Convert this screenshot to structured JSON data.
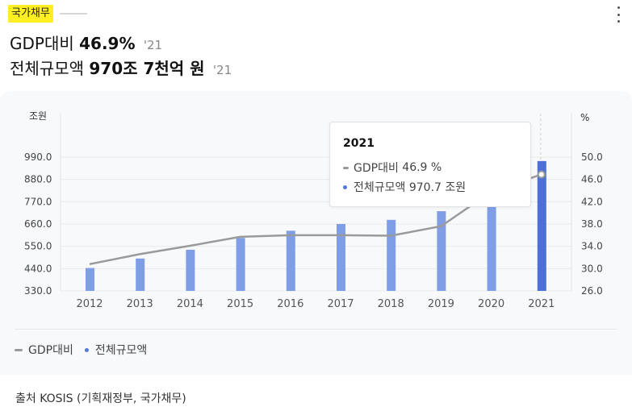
{
  "header": {
    "tag": "국가채무",
    "line1": {
      "label": "GDP대비",
      "value": "46.9%",
      "year": "'21"
    },
    "line2": {
      "label": "전체규모액",
      "value": "970조 7천억 원",
      "year": "'21"
    }
  },
  "tooltip": {
    "title": "2021",
    "rows": [
      {
        "label": "GDP대비",
        "value": "46.9 %"
      },
      {
        "label": "전체규모액",
        "value": "970.7 조원"
      }
    ]
  },
  "legend": {
    "items": [
      "GDP대비",
      "전체규모액"
    ]
  },
  "source": "출처 KOSIS (기획재정부, 국가채무)",
  "colors": {
    "bar": "#7f9ee6",
    "bar_highlight": "#4d6fd8",
    "line": "#9a9a9a",
    "tag": "#ffee22"
  },
  "chart_data": {
    "type": "bar",
    "categories": [
      "2012",
      "2013",
      "2014",
      "2015",
      "2016",
      "2017",
      "2018",
      "2019",
      "2020",
      "2021"
    ],
    "series": [
      {
        "name": "전체규모액",
        "type": "bar",
        "axis": "left",
        "values": [
          443.1,
          489.8,
          533.2,
          591.5,
          626.9,
          660.2,
          680.5,
          723.2,
          846.6,
          970.7
        ]
      },
      {
        "name": "GDP대비",
        "type": "line",
        "axis": "right",
        "values": [
          30.8,
          32.6,
          34.1,
          35.7,
          36.0,
          36.0,
          35.9,
          37.6,
          43.8,
          46.9
        ]
      }
    ],
    "y_left": {
      "label": "조원",
      "ticks": [
        "330.0",
        "440.0",
        "550.0",
        "660.0",
        "770.0",
        "880.0",
        "990.0"
      ],
      "range": [
        330,
        990
      ]
    },
    "y_right": {
      "label": "%",
      "ticks": [
        "26.0",
        "30.0",
        "34.0",
        "38.0",
        "42.0",
        "46.0",
        "50.0"
      ],
      "range": [
        26,
        50
      ]
    },
    "grid": true,
    "highlight": "2021"
  }
}
